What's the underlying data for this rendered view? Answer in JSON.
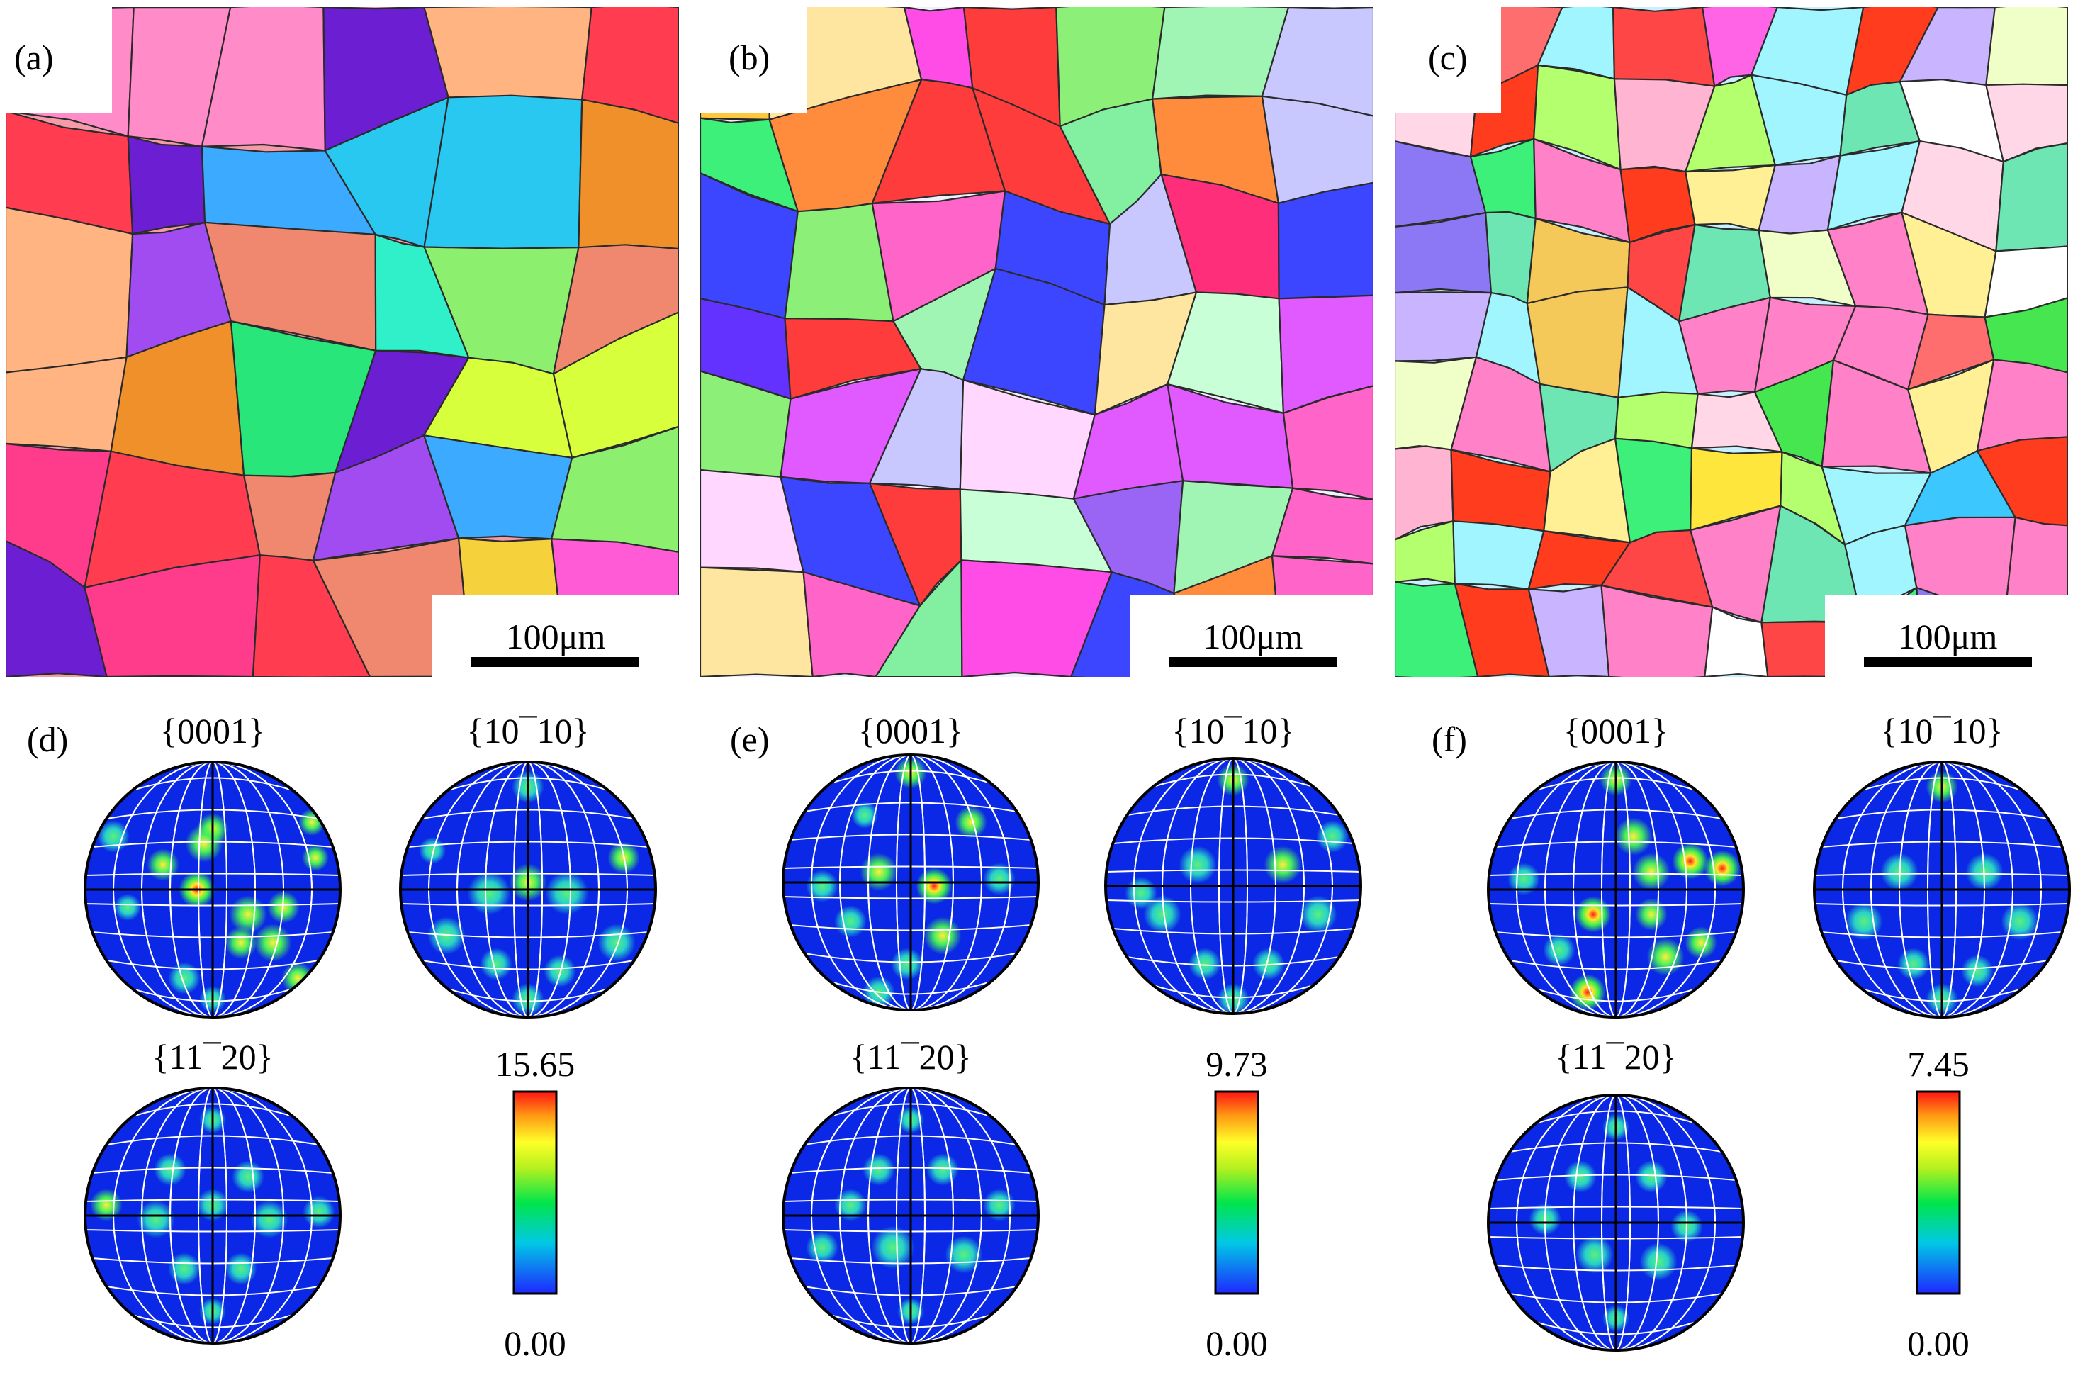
{
  "panels": [
    {
      "id": "a",
      "label": "(a)",
      "scale_text": "100μm",
      "palette": [
        "#ff5bd6",
        "#2ff0c8",
        "#f08870",
        "#ff3c8c",
        "#8cf06e",
        "#d7ff3c",
        "#f0902a",
        "#ff3c50",
        "#1e4bff",
        "#28c8f0",
        "#a0f0ff",
        "#6c1ed2",
        "#28e67a",
        "#f5d23c",
        "#a04cf0",
        "#ffb482",
        "#3caaff",
        "#ff8cc8"
      ]
    },
    {
      "id": "b",
      "label": "(b)",
      "scale_text": "100μm",
      "palette": [
        "#ff2e7a",
        "#8cf078",
        "#ffc83c",
        "#6432ff",
        "#3c46ff",
        "#ff64c8",
        "#ff4ce6",
        "#3cf07a",
        "#ff8c3c",
        "#ffe6a0",
        "#fff0d2",
        "#c8c8ff",
        "#ff3c3c",
        "#ffd7ff",
        "#9a64f5",
        "#82f0a0",
        "#c8ffd7",
        "#ff6e6e",
        "#a0f5b4",
        "#e15aff"
      ]
    },
    {
      "id": "c",
      "label": "(c)",
      "scale_text": "100μm",
      "palette": [
        "#ff3c1e",
        "#3cf07a",
        "#ffe63c",
        "#ff64e6",
        "#ffb4d2",
        "#ffffff",
        "#f0ffc8",
        "#3cc8ff",
        "#a0f5ff",
        "#46e650",
        "#ff6e6e",
        "#ff82c8",
        "#ffd7e6",
        "#8c78f5",
        "#fff096",
        "#f5c85a",
        "#6ee6b4",
        "#ff4646",
        "#b4ff6e",
        "#c8b4ff"
      ]
    }
  ],
  "pole_groups": [
    {
      "id": "d",
      "label": "(d)",
      "titles": [
        "{0001}",
        "{10¯10}",
        "{11¯20}"
      ],
      "cbar_max": "15.65",
      "cbar_min": "0.00"
    },
    {
      "id": "e",
      "label": "(e)",
      "titles": [
        "{0001}",
        "{10¯10}",
        "{11¯20}"
      ],
      "cbar_max": "9.73",
      "cbar_min": "0.00"
    },
    {
      "id": "f",
      "label": "(f)",
      "titles": [
        "{0001}",
        "{10¯10}",
        "{11¯20}"
      ],
      "cbar_max": "7.45",
      "cbar_min": "0.00"
    }
  ],
  "colors": {
    "pf_background": "#0a28e6",
    "grid": "#ffffff",
    "grain_boundary": "#2a2a2a"
  }
}
